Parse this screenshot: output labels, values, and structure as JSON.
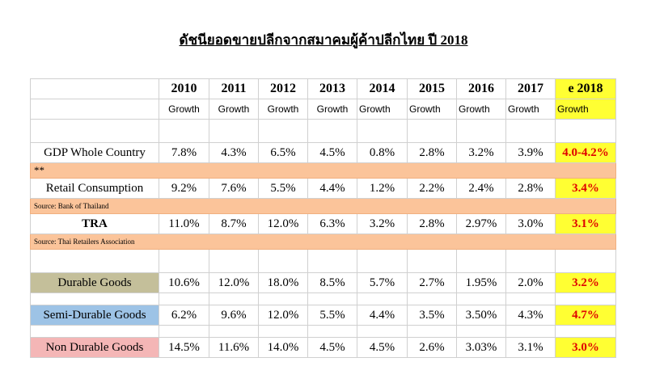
{
  "title": "ดัชนียอดขายปลีกจากสมาคมผู้ค้าปลีกไทย ปี 2018",
  "years": [
    "2010",
    "2011",
    "2012",
    "2013",
    "2014",
    "2015",
    "2016",
    "2017",
    "e 2018"
  ],
  "growth_label": "Growth",
  "rows": {
    "gdp": {
      "label": "GDP Whole Country",
      "values": [
        "7.8%",
        "4.3%",
        "6.5%",
        "4.5%",
        "0.8%",
        "2.8%",
        "3.2%",
        "3.9%",
        "4.0-4.2%"
      ]
    },
    "stars": "**",
    "retail": {
      "label": "Retail Consumption",
      "values": [
        "9.2%",
        "7.6%",
        "5.5%",
        "4.4%",
        "1.2%",
        "2.2%",
        "2.4%",
        "2.8%",
        "3.4%"
      ]
    },
    "source_bot": "Source: Bank of Thailand",
    "tra": {
      "label": "TRA",
      "values": [
        "11.0%",
        "8.7%",
        "12.0%",
        "6.3%",
        "3.2%",
        "2.8%",
        "2.97%",
        "3.0%",
        "3.1%"
      ]
    },
    "source_tra": "Source: Thai Retailers Association",
    "durable": {
      "label": "Durable Goods",
      "values": [
        "10.6%",
        "12.0%",
        "18.0%",
        "8.5%",
        "5.7%",
        "2.7%",
        "1.95%",
        "2.0%",
        "3.2%"
      ]
    },
    "semi": {
      "label": "Semi-Durable Goods",
      "values": [
        "6.2%",
        "9.6%",
        "12.0%",
        "5.5%",
        "4.4%",
        "3.5%",
        "3.50%",
        "4.3%",
        "4.7%"
      ]
    },
    "non": {
      "label": "Non Durable Goods",
      "values": [
        "14.5%",
        "11.6%",
        "14.0%",
        "4.5%",
        "4.5%",
        "2.6%",
        "3.03%",
        "3.1%",
        "3.0%"
      ]
    }
  },
  "colors": {
    "highlight": "#ffff33",
    "highlight_text": "#e00000",
    "note_band": "#fbc49a",
    "durable": "#c4bf9a",
    "semi_durable": "#9dc3e6",
    "non_durable": "#f4b6b6"
  }
}
